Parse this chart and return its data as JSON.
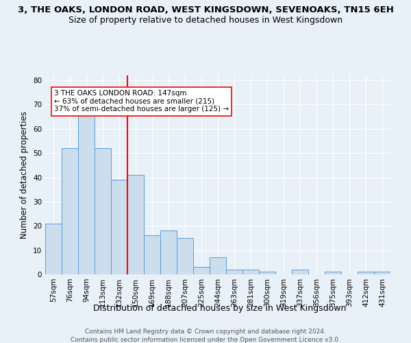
{
  "title": "3, THE OAKS, LONDON ROAD, WEST KINGSDOWN, SEVENOAKS, TN15 6EH",
  "subtitle": "Size of property relative to detached houses in West Kingsdown",
  "xlabel": "Distribution of detached houses by size in West Kingsdown",
  "ylabel": "Number of detached properties",
  "categories": [
    "57sqm",
    "76sqm",
    "94sqm",
    "113sqm",
    "132sqm",
    "150sqm",
    "169sqm",
    "188sqm",
    "207sqm",
    "225sqm",
    "244sqm",
    "263sqm",
    "281sqm",
    "300sqm",
    "319sqm",
    "337sqm",
    "356sqm",
    "375sqm",
    "393sqm",
    "412sqm",
    "431sqm"
  ],
  "values": [
    21,
    52,
    68,
    52,
    39,
    41,
    16,
    18,
    15,
    3,
    7,
    2,
    2,
    1,
    0,
    2,
    0,
    1,
    0,
    1,
    1
  ],
  "bar_color": "#ccdded",
  "bar_edge_color": "#5b9bd5",
  "vline_color": "red",
  "annotation_line1": "3 THE OAKS LONDON ROAD: 147sqm",
  "annotation_line2": "← 63% of detached houses are smaller (215)",
  "annotation_line3": "37% of semi-detached houses are larger (125) →",
  "annotation_box_color": "white",
  "annotation_box_edge": "red",
  "ylim": [
    0,
    82
  ],
  "yticks": [
    0,
    10,
    20,
    30,
    40,
    50,
    60,
    70,
    80
  ],
  "footer1": "Contains HM Land Registry data © Crown copyright and database right 2024.",
  "footer2": "Contains public sector information licensed under the Open Government Licence v3.0.",
  "bg_color": "#e8f0f8",
  "plot_bg_color": "#e8f0f8",
  "grid_color": "#ffffff",
  "title_fontsize": 9.5,
  "subtitle_fontsize": 9,
  "axis_label_fontsize": 8.5,
  "tick_fontsize": 7.5,
  "annotation_fontsize": 7.5,
  "footer_fontsize": 6.5
}
